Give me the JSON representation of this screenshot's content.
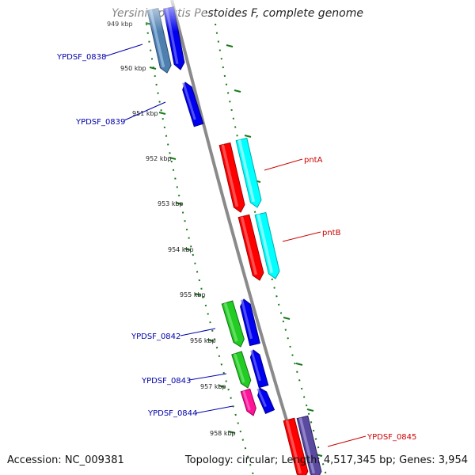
{
  "title": "Yersinia pestis Pestoides F, complete genome",
  "footer": {
    "accession": "Accession: NC_009381",
    "summary": "Topology: circular; Length: 4,517,345 bp; Genes: 3,954"
  },
  "colors": {
    "backbone": "#8a8a8a",
    "ticks": "#1a7a1a",
    "gene_label_forward": "#0000aa",
    "gene_label_reverse": "#cc0000"
  },
  "kbp_labels": [
    "949 kbp",
    "950 kbp",
    "951 kbp",
    "952 kbp",
    "953 kbp",
    "954 kbp",
    "955 kbp",
    "956 kbp",
    "957 kbp",
    "958 kbp"
  ],
  "genes": [
    {
      "label": "YPDSF_0838",
      "color": "#0000aa"
    },
    {
      "label": "YPDSF_0839",
      "color": "#0000aa"
    },
    {
      "label": "pntA",
      "color": "#cc0000"
    },
    {
      "label": "pntB",
      "color": "#cc0000"
    },
    {
      "label": "YPDSF_0842",
      "color": "#0000aa"
    },
    {
      "label": "YPDSF_0843",
      "color": "#0000aa"
    },
    {
      "label": "YPDSF_0844",
      "color": "#0000aa"
    },
    {
      "label": "YPDSF_0845",
      "color": "#cc0000"
    }
  ]
}
